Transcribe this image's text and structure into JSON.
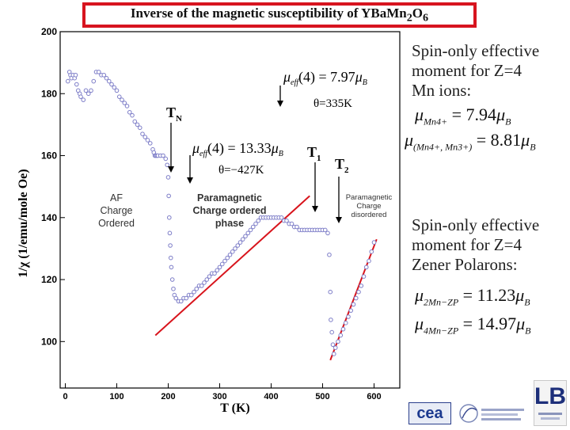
{
  "header": {
    "title_main": "Inverse of the magnetic susceptibility of YBaMn",
    "title_sub1": "2",
    "title_mid": "O",
    "title_sub2": "6"
  },
  "chart_data": {
    "type": "scatter",
    "xlabel": "T (K)",
    "ylabel": "1/χ (1/emu/mole Oe)",
    "xlim": [
      -10,
      650
    ],
    "ylim": [
      85,
      200
    ],
    "x_ticks": [
      0,
      100,
      200,
      300,
      400,
      500,
      600
    ],
    "y_ticks": [
      100,
      120,
      140,
      160,
      180,
      200
    ],
    "series": [
      {
        "marker": "open-circle",
        "color": "#7e7ec8",
        "x": [
          5,
          8,
          10,
          12,
          15,
          18,
          20,
          22,
          25,
          28,
          30,
          35,
          40,
          45,
          50,
          55,
          60,
          65,
          70,
          75,
          80,
          85,
          90,
          95,
          100,
          105,
          110,
          115,
          120,
          125,
          130,
          135,
          140,
          145,
          150,
          155,
          160,
          165,
          170,
          172,
          174,
          176,
          178,
          180,
          185,
          190,
          195,
          198,
          200,
          201,
          202,
          203,
          204,
          205,
          206,
          208,
          210,
          212,
          215,
          220,
          225,
          230,
          235,
          240,
          245,
          250,
          255,
          260,
          265,
          270,
          275,
          280,
          285,
          290,
          295,
          300,
          305,
          310,
          315,
          320,
          325,
          330,
          335,
          340,
          345,
          350,
          355,
          360,
          365,
          370,
          375,
          380,
          385,
          390,
          395,
          400,
          405,
          410,
          415,
          420,
          425,
          430,
          435,
          440,
          445,
          450,
          455,
          460,
          465,
          470,
          475,
          480,
          485,
          490,
          495,
          500,
          505,
          510,
          513,
          515,
          516,
          518,
          520,
          522,
          525,
          530,
          535,
          540,
          545,
          550,
          555,
          560,
          565,
          570,
          575,
          580,
          585,
          590,
          595,
          600
        ],
        "y": [
          184,
          187,
          186,
          185,
          186,
          185,
          186,
          183,
          181,
          180,
          179,
          178,
          181,
          180,
          181,
          184,
          187,
          187,
          186,
          186,
          185,
          184,
          183,
          182,
          181,
          179,
          178,
          177,
          176,
          174,
          173,
          171,
          170,
          169,
          167,
          166,
          165,
          164,
          162,
          161,
          160,
          160,
          160,
          160,
          160,
          160,
          159,
          157,
          153,
          147,
          140,
          135,
          131,
          127,
          124,
          120,
          117,
          115,
          114,
          113,
          113,
          114,
          114,
          115,
          115,
          116,
          117,
          118,
          118,
          119,
          120,
          121,
          122,
          122,
          123,
          124,
          125,
          126,
          127,
          128,
          129,
          130,
          131,
          132,
          133,
          134,
          135,
          136,
          137,
          138,
          139,
          140,
          140,
          140,
          140,
          140,
          140,
          140,
          140,
          140,
          139,
          139,
          138,
          138,
          137,
          137,
          136,
          136,
          136,
          136,
          136,
          136,
          136,
          136,
          136,
          136,
          136,
          135,
          128,
          116,
          107,
          103,
          99,
          96,
          98,
          100,
          102,
          104,
          106,
          108,
          110,
          112,
          114,
          116,
          118,
          121,
          124,
          126,
          129,
          132
        ]
      }
    ],
    "fit_lines": [
      {
        "color": "#d8141c",
        "x": [
          175,
          475
        ],
        "y": [
          102,
          147
        ]
      },
      {
        "color": "#d8141c",
        "x": [
          515,
          605
        ],
        "y": [
          94,
          133
        ]
      }
    ],
    "annotations": {
      "theta_pos": "θ=335K",
      "theta_neg": "θ=−427K",
      "tn": "T",
      "tn_sub": "N",
      "t1": "T",
      "t1_sub": "1",
      "t2": "T",
      "t2_sub": "2",
      "mu_eff_low": "μ",
      "mu_eff_low_sub": "eff",
      "mu_eff_low_rest": "(4) = 13.33",
      "mu_eff_low_unit": "μ",
      "mu_eff_low_unit_sub": "B",
      "mu_eff_high": "μ",
      "mu_eff_high_sub": "eff",
      "mu_eff_high_rest": "(4) = 7.97",
      "mu_eff_high_unit": "μ",
      "mu_eff_high_unit_sub": "B"
    },
    "regions": [
      {
        "id": "af",
        "lines": [
          "AF",
          "Charge",
          "Ordered"
        ]
      },
      {
        "id": "para-co",
        "lines": [
          "Paramagnetic",
          "Charge ordered",
          "phase"
        ]
      },
      {
        "id": "para-cd",
        "lines": [
          "Paramagnetic",
          "Charge",
          "disordered"
        ]
      }
    ]
  },
  "right_panel": {
    "spin_only_1": [
      "Spin-only effective",
      "moment for Z=4",
      "Mn ions:"
    ],
    "formula_mn4": {
      "mu": "μ",
      "sub": "Mn4+",
      "rest": " = 7.94",
      "unit": "μ",
      "unit_sub": "B"
    },
    "formula_mn43": {
      "mu": "μ",
      "sub": "(Mn4+, Mn3+)",
      "rest": " = 8.81",
      "unit": "μ",
      "unit_sub": "B"
    },
    "spin_only_2": [
      "Spin-only effective",
      "moment for Z=4",
      "Zener Polarons:"
    ],
    "formula_zp2": {
      "mu": "μ",
      "sub": "2Mn−ZP",
      "rest": " = 11.23",
      "unit": "μ",
      "unit_sub": "B"
    },
    "formula_zp4": {
      "mu": "μ",
      "sub": "4Mn−ZP",
      "rest": " = 14.97",
      "unit": "μ",
      "unit_sub": "B"
    }
  },
  "logos": {
    "cea": "cea",
    "lb": "LB"
  }
}
